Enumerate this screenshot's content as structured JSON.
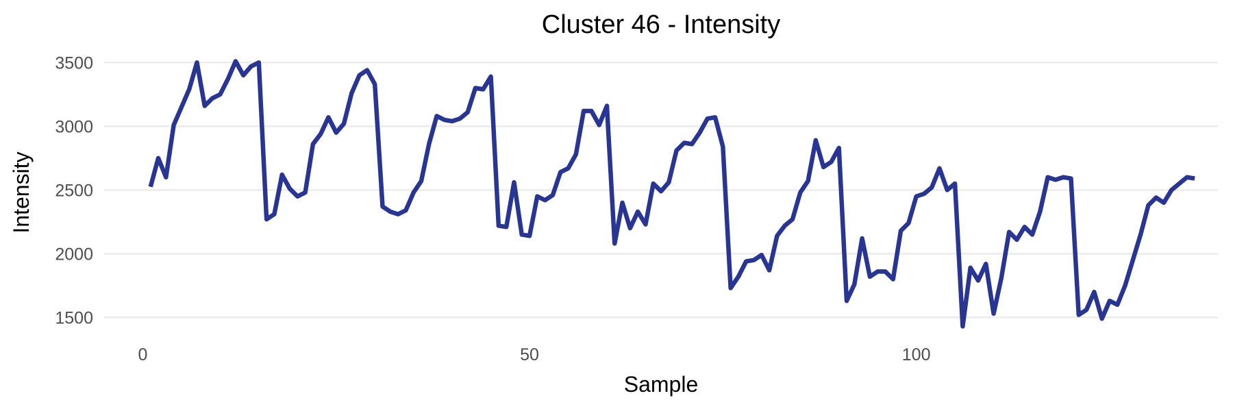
{
  "chart_data": {
    "type": "line",
    "title": "Cluster 46 - Intensity",
    "xlabel": "Sample",
    "ylabel": "Intensity",
    "xlim": [
      -5,
      139
    ],
    "ylim": [
      1400,
      3550
    ],
    "xticks": [
      0,
      50,
      100
    ],
    "yticks": [
      1500,
      2000,
      2500,
      3000,
      3500
    ],
    "grid": true,
    "line_color": "#283593",
    "series": [
      {
        "x": [
          1,
          2,
          3,
          4,
          5,
          6,
          7,
          8,
          9,
          10,
          11,
          12,
          13,
          14,
          15,
          16,
          17,
          18,
          19,
          20,
          21,
          22,
          23,
          24,
          25,
          26,
          27,
          28,
          29,
          30,
          31,
          32,
          33,
          34,
          35,
          36,
          37,
          38,
          39,
          40,
          41,
          42,
          43,
          44,
          45,
          46,
          47,
          48,
          49,
          50,
          51,
          52,
          53,
          54,
          55,
          56,
          57,
          58,
          59,
          60,
          61,
          62,
          63,
          64,
          65,
          66,
          67,
          68,
          69,
          70,
          71,
          72,
          73,
          74,
          75,
          76,
          77,
          78,
          79,
          80,
          81,
          82,
          83,
          84,
          85,
          86,
          87,
          88,
          89,
          90,
          91,
          92,
          93,
          94,
          95,
          96,
          97,
          98,
          99,
          100,
          101,
          102,
          103,
          104,
          105,
          106,
          107,
          108,
          109,
          110,
          111,
          112,
          113,
          114,
          115,
          116,
          117,
          118,
          119,
          120,
          121,
          122,
          123,
          124,
          125,
          126,
          127,
          128,
          129,
          130,
          131,
          132,
          133,
          134,
          135,
          136
        ],
        "y": [
          2525,
          2750,
          2600,
          3010,
          3150,
          3290,
          3500,
          3160,
          3220,
          3250,
          3370,
          3510,
          3400,
          3470,
          3500,
          2270,
          2310,
          2620,
          2510,
          2450,
          2480,
          2860,
          2940,
          3070,
          2950,
          3020,
          3260,
          3400,
          3440,
          3330,
          2370,
          2330,
          2310,
          2340,
          2480,
          2570,
          2860,
          3080,
          3050,
          3040,
          3060,
          3110,
          3300,
          3290,
          3390,
          2220,
          2210,
          2560,
          2150,
          2140,
          2450,
          2420,
          2460,
          2640,
          2670,
          2780,
          3120,
          3120,
          3010,
          3160,
          2080,
          2400,
          2200,
          2330,
          2230,
          2550,
          2490,
          2560,
          2810,
          2870,
          2860,
          2950,
          3060,
          3070,
          2840,
          1730,
          1820,
          1940,
          1950,
          1990,
          1870,
          2140,
          2220,
          2270,
          2480,
          2570,
          2890,
          2680,
          2720,
          2830,
          1630,
          1760,
          2120,
          1820,
          1860,
          1860,
          1800,
          2180,
          2240,
          2450,
          2470,
          2520,
          2670,
          2500,
          2550,
          1430,
          1890,
          1790,
          1920,
          1530,
          1810,
          2170,
          2110,
          2210,
          2150,
          2330,
          2600,
          2580,
          2600,
          2590,
          1520,
          1560,
          1700,
          1490,
          1630,
          1600,
          1750,
          1950,
          2150,
          2380,
          2440,
          2400,
          2500,
          2550,
          2600,
          2590
        ]
      }
    ]
  }
}
